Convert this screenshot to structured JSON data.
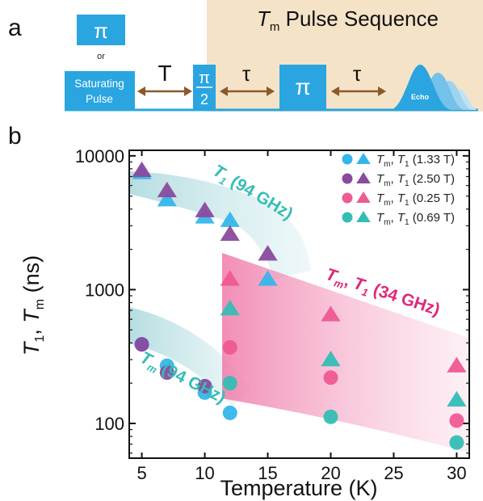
{
  "panel_a": {
    "letter": "a",
    "header_title_prefix": "T",
    "header_title_sub": "m",
    "header_title_rest": " Pulse Sequence",
    "pi_label": "π",
    "or_label": "or",
    "saturating_line1": "Saturating",
    "saturating_line2": "Pulse",
    "delay_T_label": "T",
    "pi_half_top": "π",
    "pi_half_bottom": "2",
    "tau_label": "τ",
    "pi_pulse_label": "π",
    "echo_label": "Echo",
    "colors": {
      "pulse": "#2aa5e0",
      "header_bg": "#f5e3c8",
      "arrow": "#8b5a2b"
    }
  },
  "panel_b": {
    "letter": "b"
  },
  "chart_data": {
    "type": "scatter",
    "title": "",
    "xlabel": "Temperature (K)",
    "ylabel_main_1": "T",
    "ylabel_sub_1": "1",
    "ylabel_sep": ", ",
    "ylabel_main_2": "T",
    "ylabel_sub_2": "m",
    "ylabel_unit": " (ns)",
    "xlim": [
      4,
      31
    ],
    "ylim": [
      55,
      11000
    ],
    "yscale": "log",
    "xticks": [
      5,
      10,
      15,
      20,
      25,
      30
    ],
    "yticks": [
      100,
      1000,
      10000
    ],
    "legend_position": "top-right",
    "legend": [
      {
        "t1": "T",
        "s1": "m",
        "sep": ", ",
        "t2": "T",
        "s2": "1",
        "field": "(1.33 T)",
        "color": "#35b6ea"
      },
      {
        "t1": "T",
        "s1": "m",
        "sep": ", ",
        "t2": "T",
        "s2": "1",
        "field": "(2.50 T)",
        "color": "#8a4a9e"
      },
      {
        "t1": "T",
        "s1": "m",
        "sep": ", ",
        "t2": "T",
        "s2": "1",
        "field": "(0.25 T)",
        "color": "#ee5a92"
      },
      {
        "t1": "T",
        "s1": "m",
        "sep": ", ",
        "t2": "T",
        "s2": "1",
        "field": "(0.69 T)",
        "color": "#35bdb5"
      }
    ],
    "series": [
      {
        "color": "#35b6ea",
        "marker": "triangle",
        "x": [
          5,
          7,
          10,
          12,
          15
        ],
        "y": [
          7500,
          4700,
          3500,
          3300,
          1200
        ]
      },
      {
        "color": "#8a4a9e",
        "marker": "triangle",
        "x": [
          5,
          7,
          10,
          12,
          15
        ],
        "y": [
          7800,
          5500,
          3900,
          2600,
          1850
        ]
      },
      {
        "color": "#ee5a92",
        "marker": "triangle",
        "x": [
          12,
          20,
          30
        ],
        "y": [
          1200,
          650,
          270
        ]
      },
      {
        "color": "#35bdb5",
        "marker": "triangle",
        "x": [
          12,
          20,
          30
        ],
        "y": [
          720,
          300,
          150
        ]
      },
      {
        "color": "#35b6ea",
        "marker": "circle",
        "x": [
          5,
          7,
          10,
          12
        ],
        "y": [
          390,
          270,
          170,
          120
        ]
      },
      {
        "color": "#8a4a9e",
        "marker": "circle",
        "x": [
          5,
          7,
          10
        ],
        "y": [
          390,
          240,
          190
        ]
      },
      {
        "color": "#ee5a92",
        "marker": "circle",
        "x": [
          12,
          20,
          30
        ],
        "y": [
          370,
          220,
          105
        ]
      },
      {
        "color": "#35bdb5",
        "marker": "circle",
        "x": [
          12,
          20,
          30
        ],
        "y": [
          200,
          112,
          72
        ]
      }
    ],
    "annotations": [
      {
        "main": "T",
        "sub": "1",
        "rest": " (94 GHz)",
        "color": "#35bdb5"
      },
      {
        "main": "T",
        "sub": "m",
        "rest": " (94 GHz)",
        "color": "#35bdb5"
      },
      {
        "main": "T",
        "sub": "m",
        "sep": ", ",
        "main2": "T",
        "sub2": "1",
        "rest": " (34 GHz)",
        "color": "#e0287a"
      }
    ]
  }
}
